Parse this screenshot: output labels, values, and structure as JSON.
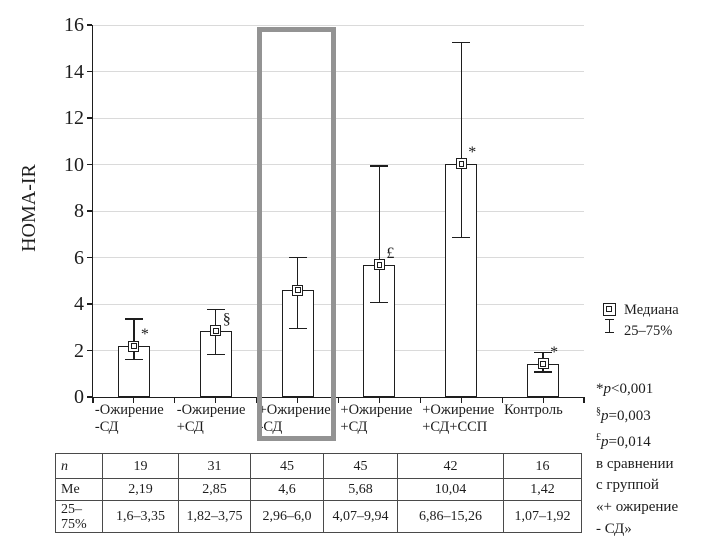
{
  "figure": {
    "bg": "#ffffff",
    "ink": "#1e1e1e",
    "grid_color": "#dadada",
    "highlight_color": "#939393"
  },
  "chart_data": {
    "type": "bar",
    "title": "",
    "xlabel": "",
    "ylabel": "HOMA-IR",
    "ylim": [
      0,
      16
    ],
    "yticks": [
      0,
      2,
      4,
      6,
      8,
      10,
      12,
      14,
      16
    ],
    "grid": "horizontal",
    "legend": {
      "position": "right",
      "median_label": "Медиана",
      "iqr_label": "25–75%"
    },
    "highlighted_group": 2,
    "groups": [
      {
        "label_lines": [
          "-Ожирение",
          "-СД"
        ],
        "n": "19",
        "median": 2.19,
        "median_text": "2,19",
        "q25": 1.6,
        "q75": 3.35,
        "iqr_text": "1,6–3,35",
        "sig": "*"
      },
      {
        "label_lines": [
          "-Ожирение",
          "+СД"
        ],
        "n": "31",
        "median": 2.85,
        "median_text": "2,85",
        "q25": 1.82,
        "q75": 3.75,
        "iqr_text": "1,82–3,75",
        "sig": "§"
      },
      {
        "label_lines": [
          "+Ожирение",
          "-СД"
        ],
        "n": "45",
        "median": 4.6,
        "median_text": "4,6",
        "q25": 2.96,
        "q75": 6.0,
        "iqr_text": "2,96–6,0",
        "sig": ""
      },
      {
        "label_lines": [
          "+Ожирение",
          "+СД"
        ],
        "n": "45",
        "median": 5.68,
        "median_text": "5,68",
        "q25": 4.07,
        "q75": 9.94,
        "iqr_text": "4,07–9,94",
        "sig": "£"
      },
      {
        "label_lines": [
          "+Ожирение",
          "+СД+ССП"
        ],
        "n": "42",
        "median": 10.04,
        "median_text": "10,04",
        "q25": 6.86,
        "q75": 15.26,
        "iqr_text": "6,86–15,26",
        "sig": "*"
      },
      {
        "label_lines": [
          "Контроль"
        ],
        "n": "16",
        "median": 1.42,
        "median_text": "1,42",
        "q25": 1.07,
        "q75": 1.92,
        "iqr_text": "1,07–1,92",
        "sig": "*"
      }
    ]
  },
  "table": {
    "n_label": "n",
    "me_label": "Me",
    "iqr_label_lines": [
      "25–",
      "75%"
    ]
  },
  "notes": {
    "lines": [
      {
        "marker": "*",
        "sup": false,
        "var": "p",
        "rest": "<0,001"
      },
      {
        "marker": "§",
        "sup": true,
        "var": "p",
        "rest": "=0,003"
      },
      {
        "marker": "£",
        "sup": true,
        "var": "p",
        "rest": "=0,014"
      },
      {
        "text": "в сравнении"
      },
      {
        "text": "с группой"
      },
      {
        "text": "«+ ожирение"
      },
      {
        "text": "- СД»"
      }
    ]
  }
}
